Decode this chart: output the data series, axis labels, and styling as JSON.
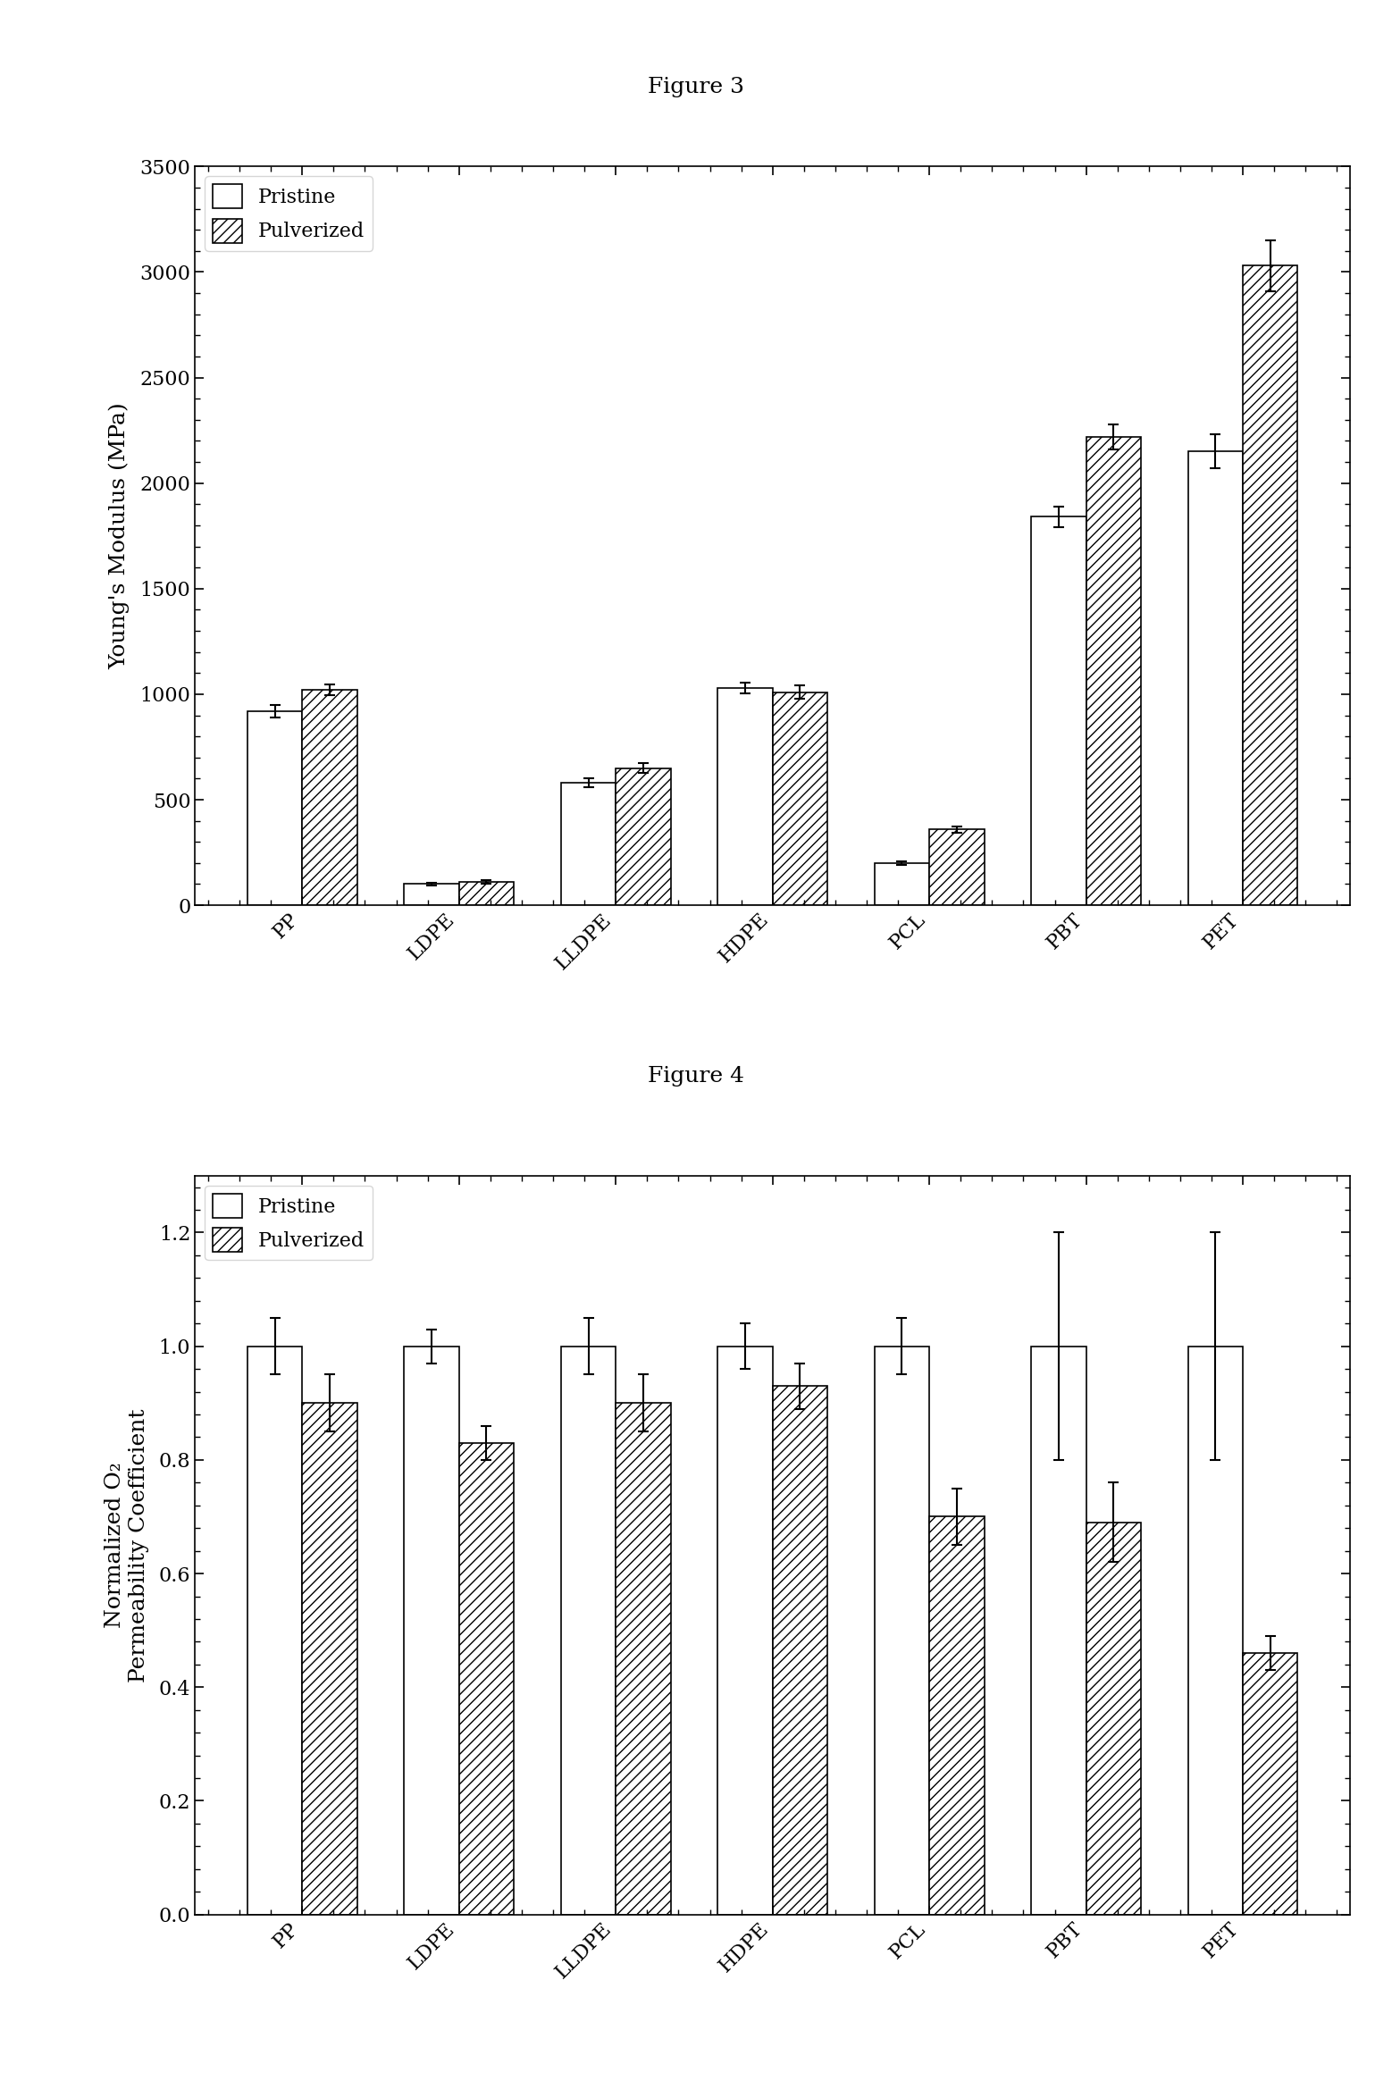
{
  "fig3_title": "Figure 3",
  "fig4_title": "Figure 4",
  "categories": [
    "PP",
    "LDPE",
    "LLDPE",
    "HDPE",
    "PCL",
    "PBT",
    "PET"
  ],
  "fig3_ylabel": "Young's Modulus (MPa)",
  "fig3_ylim": [
    0,
    3500
  ],
  "fig3_yticks": [
    0,
    500,
    1000,
    1500,
    2000,
    2500,
    3000,
    3500
  ],
  "fig3_pristine": [
    920,
    100,
    580,
    1030,
    200,
    1840,
    2150
  ],
  "fig3_pulverized": [
    1020,
    110,
    650,
    1010,
    360,
    2220,
    3030
  ],
  "fig3_pristine_err": [
    30,
    5,
    20,
    25,
    8,
    50,
    80
  ],
  "fig3_pulverized_err": [
    25,
    8,
    25,
    30,
    15,
    60,
    120
  ],
  "fig4_ylabel_line1": "Normalized O₂",
  "fig4_ylabel_line2": "Permeability Coefficient",
  "fig4_ylim": [
    0.0,
    1.3
  ],
  "fig4_yticks": [
    0.0,
    0.2,
    0.4,
    0.6,
    0.8,
    1.0,
    1.2
  ],
  "fig4_pristine": [
    1.0,
    1.0,
    1.0,
    1.0,
    1.0,
    1.0,
    1.0
  ],
  "fig4_pulverized": [
    0.9,
    0.83,
    0.9,
    0.93,
    0.7,
    0.69,
    0.46
  ],
  "fig4_pristine_err": [
    0.05,
    0.03,
    0.05,
    0.04,
    0.05,
    0.2,
    0.2
  ],
  "fig4_pulverized_err": [
    0.05,
    0.03,
    0.05,
    0.04,
    0.05,
    0.07,
    0.03
  ],
  "bar_width": 0.35,
  "pristine_color": "#ffffff",
  "pulverized_hatch": "///",
  "edge_color": "#000000",
  "background_color": "#ffffff",
  "legend_pristine": "Pristine",
  "legend_pulverized": "Pulverized",
  "title_fontsize": 18,
  "label_fontsize": 18,
  "tick_fontsize": 16,
  "legend_fontsize": 16
}
